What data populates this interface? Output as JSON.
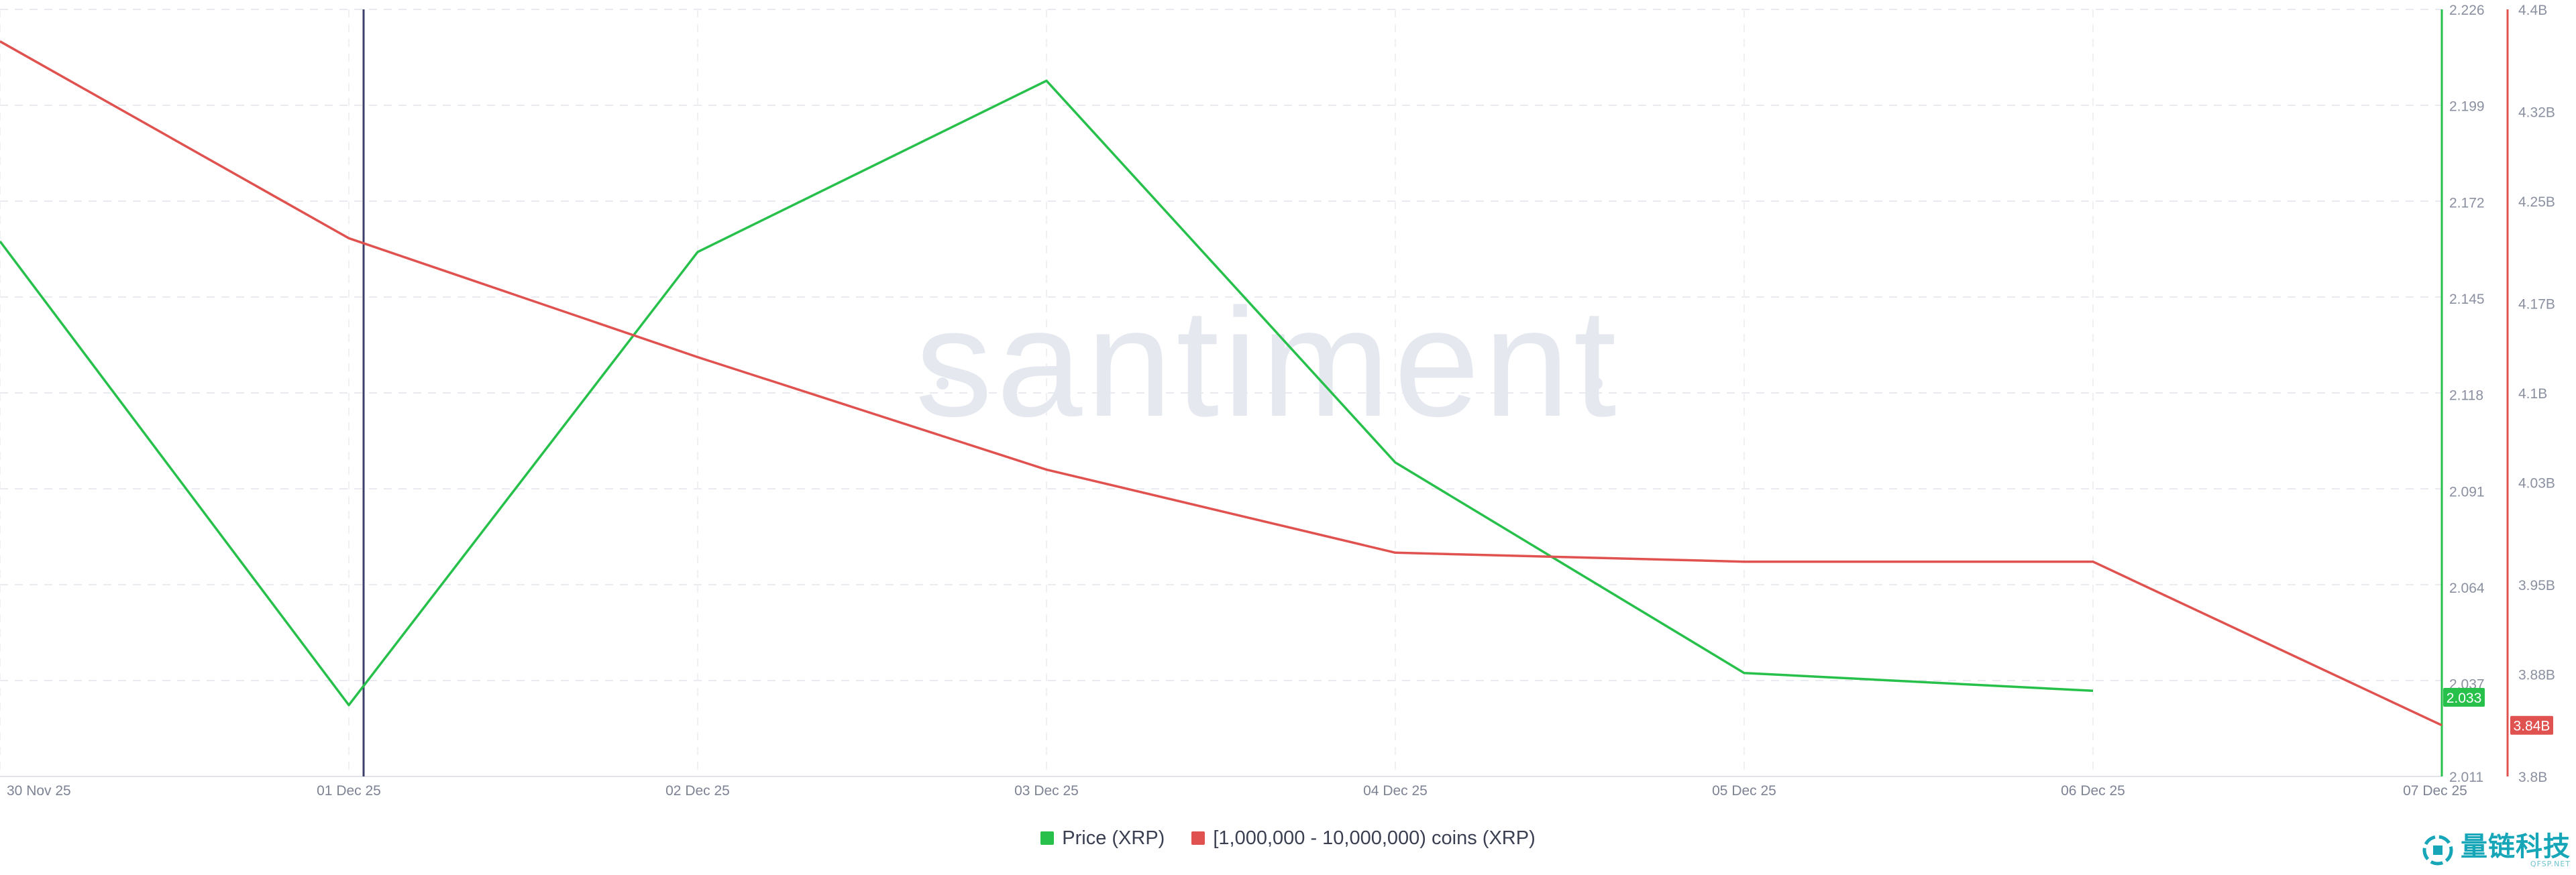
{
  "watermark": "santiment",
  "logo": {
    "text": "量链科技",
    "subtext": "QFSP.NET",
    "color": "#16a6b8"
  },
  "legend": [
    {
      "label": "Price (XRP)",
      "color": "#26c04a"
    },
    {
      "label": "[1,000,000 - 10,000,000) coins (XRP)",
      "color": "#e0524f"
    }
  ],
  "chart_data": {
    "type": "line",
    "x": [
      "30 Nov 25",
      "01 Dec 25",
      "02 Dec 25",
      "03 Dec 25",
      "04 Dec 25",
      "05 Dec 25",
      "06 Dec 25",
      "07 Dec 25"
    ],
    "series": [
      {
        "name": "Price (XRP)",
        "axis": "left",
        "color": "#26c04a",
        "values": [
          2.161,
          2.031,
          2.158,
          2.206,
          2.099,
          2.04,
          2.035,
          null
        ],
        "last_value_label": "2.033"
      },
      {
        "name": "[1,000,000 - 10,000,000) coins (XRP)",
        "axis": "right",
        "color": "#e0524f",
        "values": [
          4.375,
          4.221,
          4.128,
          4.04,
          3.975,
          3.968,
          3.968,
          3.84
        ],
        "last_value_label": "3.84B"
      }
    ],
    "y_left": {
      "ticks": [
        "2.011",
        "2.037",
        "2.064",
        "2.091",
        "2.118",
        "2.145",
        "2.172",
        "2.199",
        "2.226"
      ],
      "range": [
        2.011,
        2.226
      ]
    },
    "y_right": {
      "ticks": [
        "3.8B",
        "3.88B",
        "3.95B",
        "4.03B",
        "4.1B",
        "4.17B",
        "4.25B",
        "4.32B",
        "4.4B"
      ],
      "range": [
        3.8,
        4.4
      ],
      "unit": "B"
    },
    "highlighted_x": "01 Dec 25",
    "grid": true,
    "legend_position": "bottom-center"
  }
}
